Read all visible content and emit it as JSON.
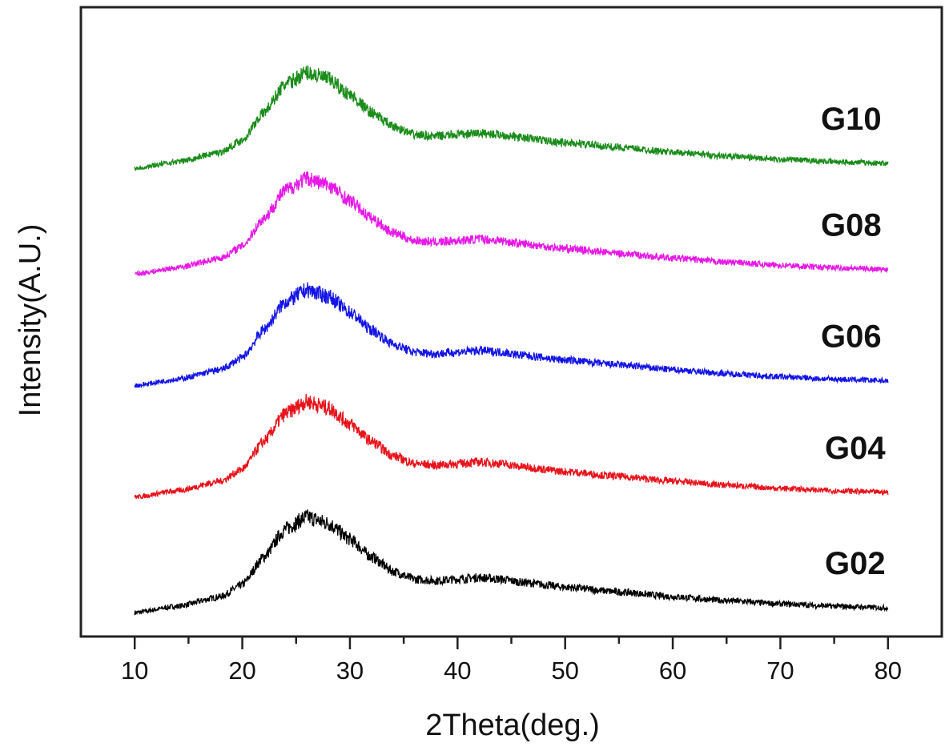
{
  "chart_data": {
    "type": "line",
    "title": "",
    "xlabel": "2Theta(deg.)",
    "ylabel": "Intensity(A.U.)",
    "xlim": [
      5,
      85
    ],
    "ylim": [
      0,
      790
    ],
    "xticks": [
      10,
      20,
      30,
      40,
      50,
      60,
      70,
      80
    ],
    "x_minor_step": 5,
    "grid": false,
    "legend": "inline labels at right of each curve",
    "x": [
      10,
      14,
      18,
      20,
      22,
      24,
      26,
      28,
      30,
      32,
      34,
      36,
      38,
      40,
      42,
      44,
      46,
      50,
      55,
      60,
      65,
      70,
      75,
      80
    ],
    "series": [
      {
        "name": "G02",
        "color": "#000000",
        "values": [
          30,
          38,
          50,
          65,
          100,
          135,
          150,
          142,
          122,
          100,
          82,
          72,
          70,
          72,
          74,
          72,
          68,
          62,
          56,
          50,
          45,
          41,
          38,
          36
        ]
      },
      {
        "name": "G04",
        "color": "#e8141c",
        "values": [
          175,
          183,
          195,
          210,
          245,
          280,
          295,
          287,
          267,
          245,
          227,
          217,
          215,
          217,
          219,
          217,
          213,
          207,
          201,
          195,
          190,
          186,
          183,
          181
        ]
      },
      {
        "name": "G06",
        "color": "#1414e6",
        "values": [
          315,
          323,
          335,
          350,
          385,
          420,
          435,
          427,
          407,
          385,
          367,
          357,
          355,
          357,
          359,
          357,
          353,
          347,
          341,
          335,
          330,
          326,
          323,
          321
        ]
      },
      {
        "name": "G08",
        "color": "#e619e6",
        "values": [
          455,
          463,
          475,
          490,
          525,
          560,
          575,
          567,
          547,
          525,
          507,
          497,
          495,
          497,
          499,
          497,
          493,
          487,
          481,
          475,
          470,
          466,
          463,
          461
        ]
      },
      {
        "name": "G10",
        "color": "#1a8c1a",
        "values": [
          588,
          596,
          608,
          623,
          658,
          693,
          708,
          700,
          680,
          658,
          640,
          630,
          628,
          630,
          632,
          630,
          626,
          620,
          614,
          608,
          603,
          599,
          596,
          594
        ]
      }
    ]
  }
}
